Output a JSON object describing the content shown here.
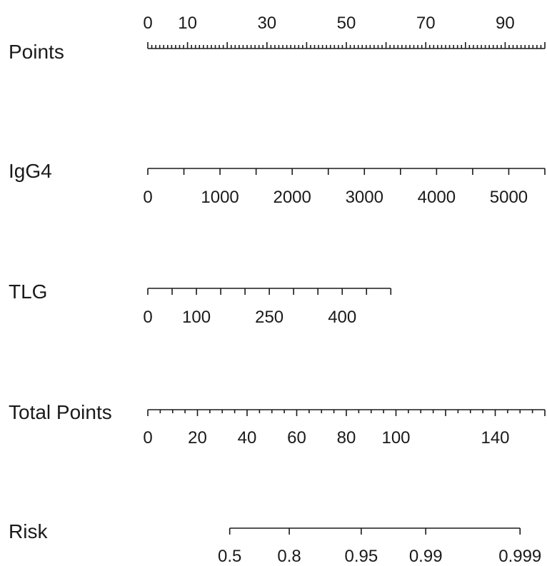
{
  "chart_data": {
    "type": "nomogram",
    "rows": [
      {
        "name": "Points",
        "range": [
          0,
          100
        ],
        "major_ticks": [
          0,
          10,
          20,
          30,
          40,
          50,
          60,
          70,
          80,
          90,
          100
        ],
        "minor_ticks": [
          1,
          2,
          3,
          4,
          5,
          6,
          7,
          8,
          9,
          11,
          12,
          13,
          14,
          15,
          16,
          17,
          18,
          19,
          21,
          22,
          23,
          24,
          25,
          26,
          27,
          28,
          29,
          31,
          32,
          33,
          34,
          35,
          36,
          37,
          38,
          39,
          41,
          42,
          43,
          44,
          45,
          46,
          47,
          48,
          49,
          51,
          52,
          53,
          54,
          55,
          56,
          57,
          58,
          59,
          61,
          62,
          63,
          64,
          65,
          66,
          67,
          68,
          69,
          71,
          72,
          73,
          74,
          75,
          76,
          77,
          78,
          79,
          81,
          82,
          83,
          84,
          85,
          86,
          87,
          88,
          89,
          91,
          92,
          93,
          94,
          95,
          96,
          97,
          98,
          99
        ],
        "tick_labels": [
          {
            "value": 0,
            "text": "0"
          },
          {
            "value": 10,
            "text": "10"
          },
          {
            "value": 30,
            "text": "30"
          },
          {
            "value": 50,
            "text": "50"
          },
          {
            "value": 70,
            "text": "70"
          },
          {
            "value": 90,
            "text": "90"
          }
        ]
      },
      {
        "name": "IgG4",
        "range": [
          0,
          5500
        ],
        "major_ticks": [
          0,
          500,
          1000,
          1500,
          2000,
          2500,
          3000,
          3500,
          4000,
          4500,
          5000,
          5500
        ],
        "minor_ticks": [],
        "tick_labels": [
          {
            "value": 0,
            "text": "0"
          },
          {
            "value": 1000,
            "text": "1000"
          },
          {
            "value": 2000,
            "text": "2000"
          },
          {
            "value": 3000,
            "text": "3000"
          },
          {
            "value": 4000,
            "text": "4000"
          },
          {
            "value": 5000,
            "text": "5000"
          }
        ]
      },
      {
        "name": "TLG",
        "range": [
          0,
          500
        ],
        "major_ticks": [
          0,
          50,
          100,
          150,
          200,
          250,
          300,
          350,
          400,
          450,
          500
        ],
        "minor_ticks": [],
        "tick_labels": [
          {
            "value": 0,
            "text": "0"
          },
          {
            "value": 100,
            "text": "100"
          },
          {
            "value": 250,
            "text": "250"
          },
          {
            "value": 400,
            "text": "400"
          }
        ]
      },
      {
        "name": "Total Points",
        "range": [
          0,
          160
        ],
        "major_ticks": [
          0,
          20,
          40,
          60,
          80,
          100,
          120,
          140,
          160
        ],
        "minor_ticks": [
          5,
          10,
          15,
          25,
          30,
          35,
          45,
          50,
          55,
          65,
          70,
          75,
          85,
          90,
          95,
          105,
          110,
          115,
          125,
          130,
          135,
          145,
          150,
          155
        ],
        "tick_labels": [
          {
            "value": 0,
            "text": "0"
          },
          {
            "value": 20,
            "text": "20"
          },
          {
            "value": 40,
            "text": "40"
          },
          {
            "value": 60,
            "text": "60"
          },
          {
            "value": 80,
            "text": "80"
          },
          {
            "value": 100,
            "text": "100"
          },
          {
            "value": 140,
            "text": "140"
          }
        ]
      },
      {
        "name": "Risk",
        "total_points_range": [
          33,
          150
        ],
        "ticks": [
          {
            "value": 0.5,
            "text": "0.5",
            "total_points": 33
          },
          {
            "value": 0.8,
            "text": "0.8",
            "total_points": 57
          },
          {
            "value": 0.95,
            "text": "0.95",
            "total_points": 86
          },
          {
            "value": 0.99,
            "text": "0.99",
            "total_points": 112
          },
          {
            "value": 0.999,
            "text": "0.999",
            "total_points": 150
          }
        ]
      }
    ]
  }
}
